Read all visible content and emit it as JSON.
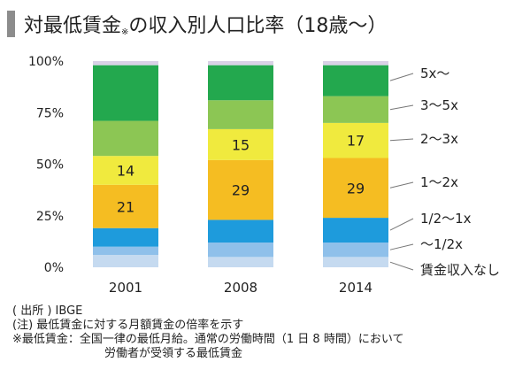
{
  "title": {
    "main": "対最低賃金",
    "mark": "※",
    "rest": "の収入別人口比率（18歳〜）"
  },
  "notes": {
    "source": "( 出所 ) IBGE",
    "note": "(注)  最低賃金に対する月額賃金の倍率を示す",
    "def_line1": "※最低賃金：全国一律の最低月給。通常の労働時間（1 日 8 時間）において",
    "def_line2": "労働者が受領する最低賃金"
  },
  "chart_data": {
    "type": "bar",
    "stacked": true,
    "categories": [
      "2001",
      "2008",
      "2014"
    ],
    "ylim": [
      0,
      100
    ],
    "yticks": [
      0,
      25,
      50,
      75,
      100
    ],
    "ytick_labels": [
      "0%",
      "25%",
      "50%",
      "75%",
      "100%"
    ],
    "grid": false,
    "legend_placement": "right",
    "series": [
      {
        "name": "賃金収入なし",
        "color": "#c5daf0",
        "values": [
          6,
          5,
          5
        ]
      },
      {
        "name": "〜1/2x",
        "color": "#8fc0ea",
        "values": [
          4,
          7,
          7
        ]
      },
      {
        "name": "1/2〜1x",
        "color": "#1e9bdc",
        "values": [
          9,
          11,
          12
        ]
      },
      {
        "name": "1〜2x",
        "color": "#f5bd22",
        "values": [
          21,
          29,
          29
        ],
        "labels": [
          "21",
          "29",
          "29"
        ]
      },
      {
        "name": "2〜3x",
        "color": "#f0ea3e",
        "values": [
          14,
          15,
          17
        ],
        "labels": [
          "14",
          "15",
          "17"
        ]
      },
      {
        "name": "3〜5x",
        "color": "#8cc654",
        "values": [
          17,
          14,
          13
        ]
      },
      {
        "name": "5x〜",
        "color": "#23a84e",
        "values": [
          27,
          17,
          15
        ]
      },
      {
        "name": "",
        "color": "#d9d1e6",
        "values": [
          2,
          2,
          2
        ]
      }
    ]
  }
}
